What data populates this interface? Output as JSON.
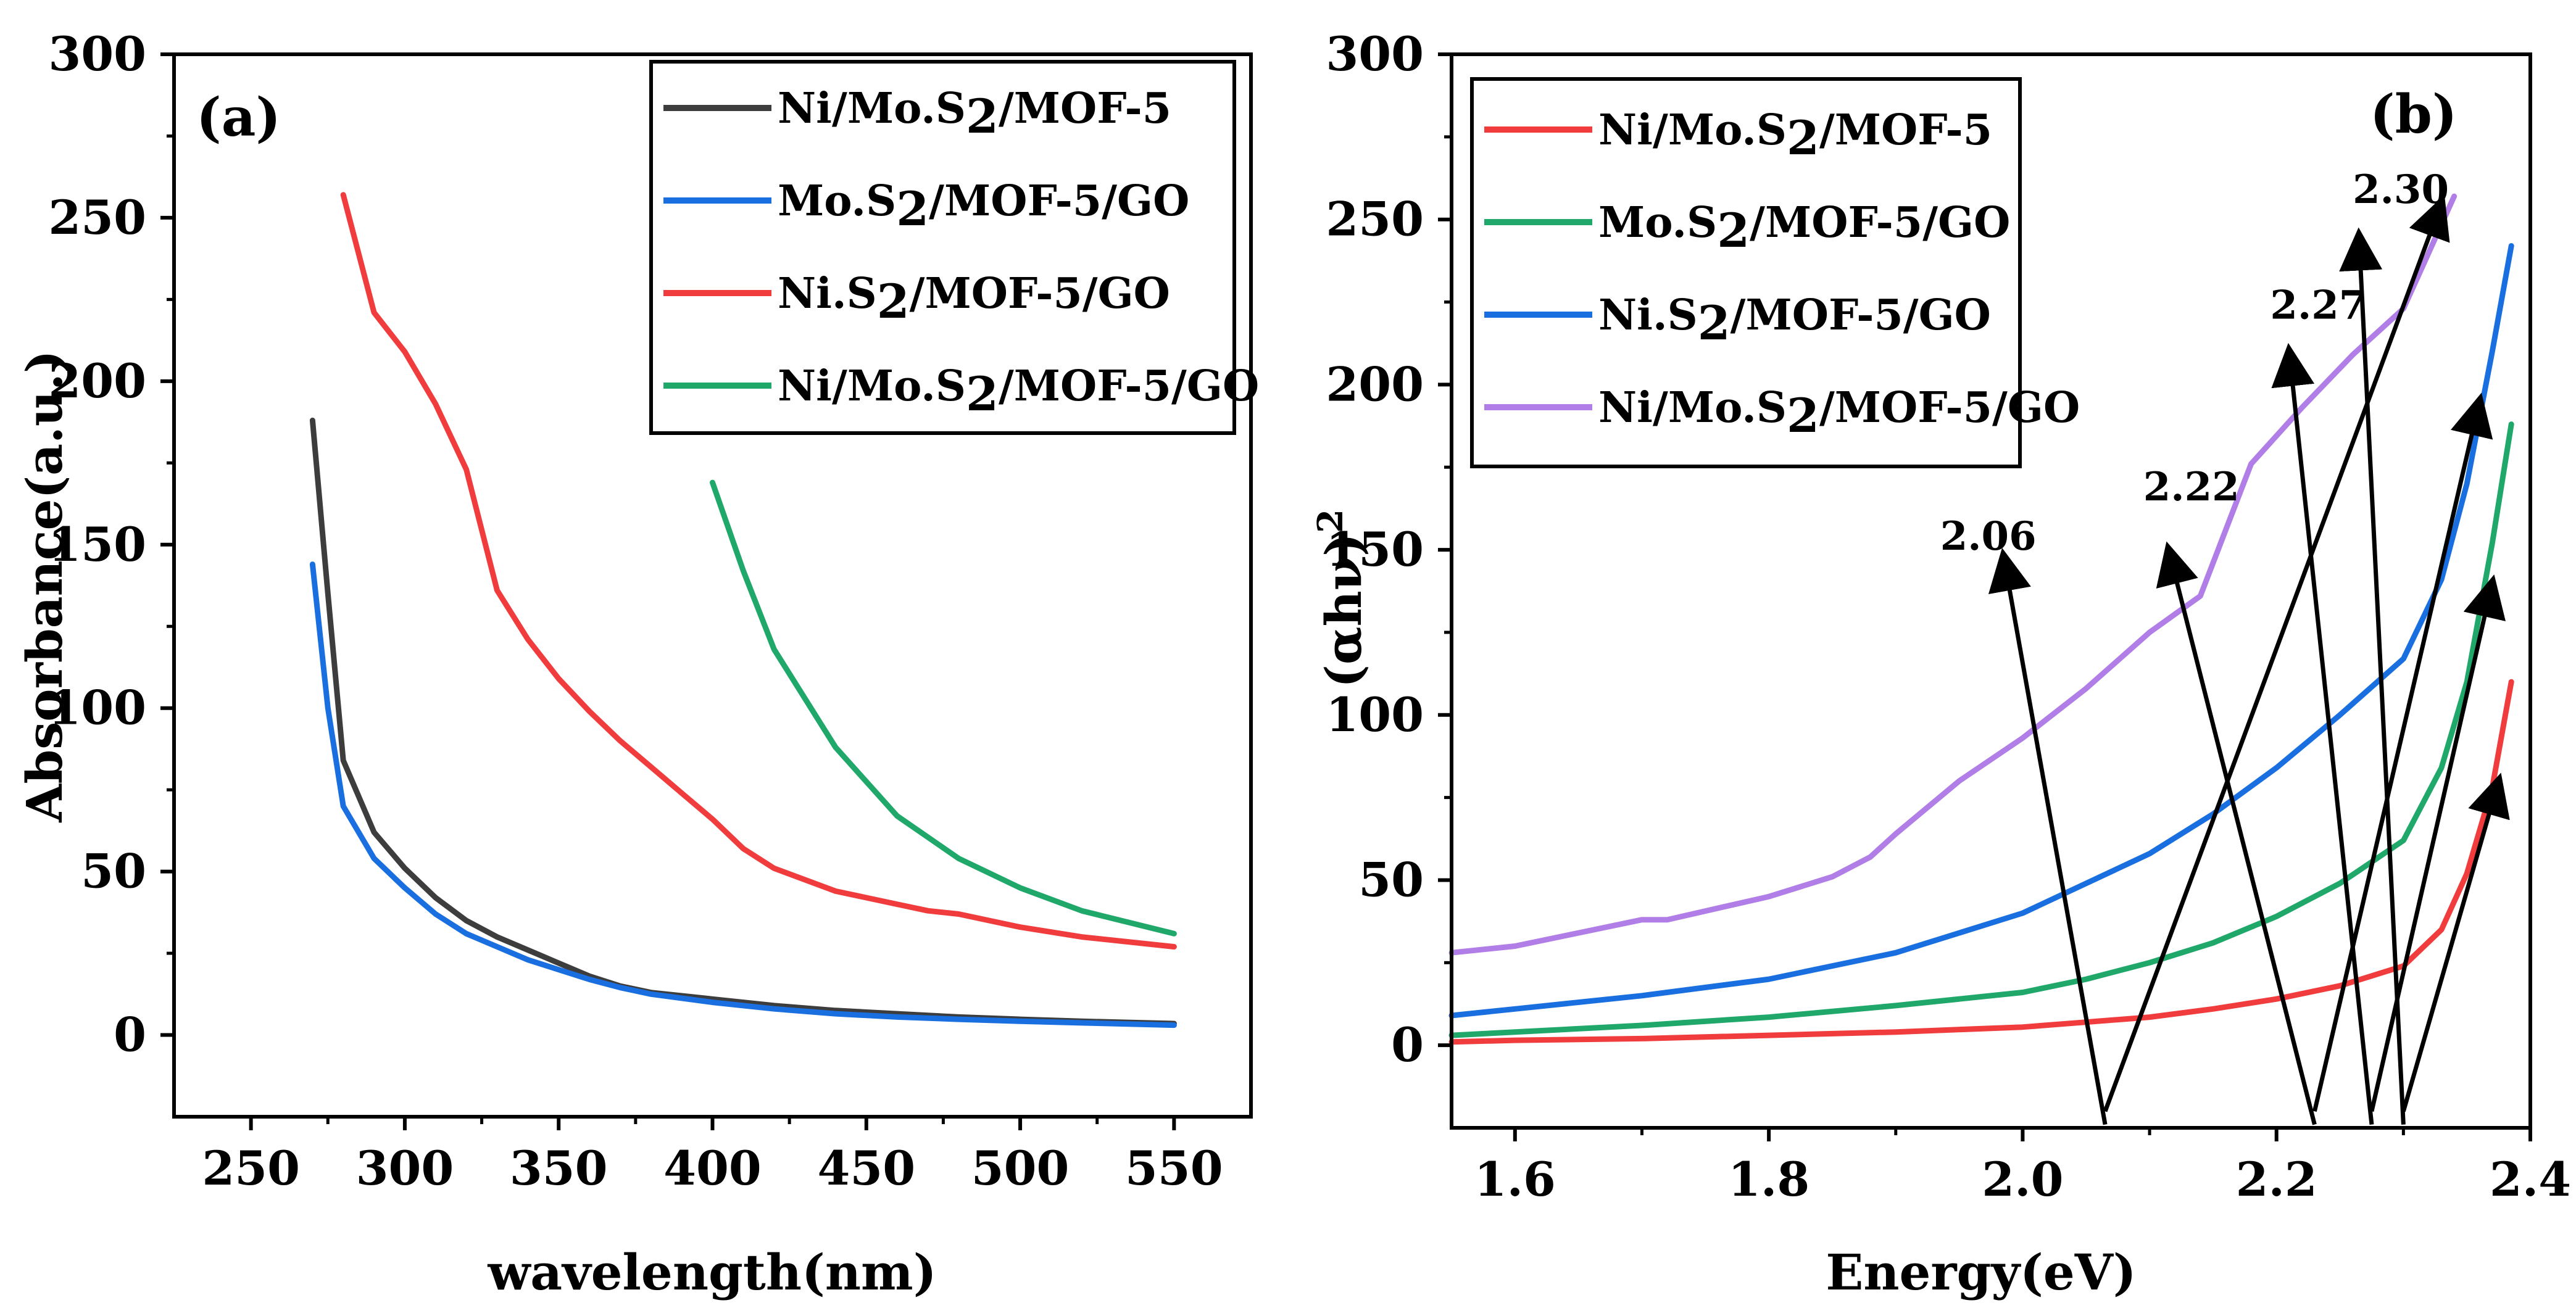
{
  "chart_data": [
    {
      "id": "a",
      "type": "line",
      "panel_label": "(a)",
      "xlabel": "wavelength(nm)",
      "ylabel": "Absorbance(a.u.)",
      "xlim": [
        225,
        575
      ],
      "ylim": [
        -25,
        300
      ],
      "xticks": [
        250,
        300,
        350,
        400,
        450,
        500,
        550
      ],
      "yticks": [
        0,
        50,
        100,
        150,
        200,
        250,
        300
      ],
      "legend": {
        "position": "top-right"
      },
      "series": [
        {
          "name": "Ni/Mo.S2/MOF-5",
          "formula": [
            "Ni/Mo.S",
            "2",
            "/MOF-5"
          ],
          "color": "#3d3d3d",
          "x": [
            270,
            275,
            280,
            290,
            300,
            310,
            320,
            330,
            340,
            350,
            360,
            370,
            380,
            390,
            400,
            420,
            440,
            460,
            480,
            500,
            520,
            550
          ],
          "y": [
            188,
            135,
            84,
            62,
            51,
            42,
            35,
            30,
            26,
            22,
            18,
            15,
            13,
            12,
            11,
            9,
            7.5,
            6.5,
            5.5,
            4.8,
            4.2,
            3.5
          ]
        },
        {
          "name": "Mo.S2/MOF-5/GO",
          "formula": [
            "Mo.S",
            "2",
            "/MOF-5/GO"
          ],
          "color": "#1a6fe0",
          "x": [
            270,
            275,
            280,
            290,
            300,
            310,
            320,
            330,
            340,
            350,
            360,
            370,
            380,
            400,
            420,
            440,
            460,
            480,
            500,
            520,
            550
          ],
          "y": [
            144,
            100,
            70,
            54,
            45,
            37,
            31,
            27,
            23,
            20,
            17,
            14.5,
            12.5,
            10,
            8,
            6.5,
            5.5,
            4.8,
            4.2,
            3.7,
            3
          ]
        },
        {
          "name": "Ni.S2/MOF-5/GO",
          "formula": [
            "Ni.S",
            "2",
            "/MOF-5/GO"
          ],
          "color": "#f03c3c",
          "x": [
            280,
            290,
            300,
            310,
            320,
            330,
            340,
            350,
            360,
            370,
            380,
            390,
            400,
            410,
            420,
            440,
            460,
            470,
            480,
            490,
            500,
            520,
            550
          ],
          "y": [
            257,
            221,
            209,
            193,
            173,
            136,
            121,
            109,
            99,
            90,
            82,
            74,
            66,
            57,
            51,
            44,
            40,
            38,
            37,
            35,
            33,
            30,
            27
          ]
        },
        {
          "name": "Ni/Mo.S2/MOF-5/GO",
          "formula": [
            "Ni/Mo.S",
            "2",
            "/MOF-5/GO"
          ],
          "color": "#1fa86a",
          "x": [
            400,
            410,
            420,
            440,
            460,
            480,
            500,
            520,
            550
          ],
          "y": [
            169,
            142,
            118,
            88,
            67,
            54,
            45,
            38,
            31
          ]
        }
      ]
    },
    {
      "id": "b",
      "type": "line",
      "panel_label": "(b)",
      "xlabel": "Energy(eV)",
      "ylabel": "(αhν)",
      "ylabel_superscript": "2",
      "xlim": [
        1.55,
        2.4
      ],
      "ylim": [
        -25,
        300
      ],
      "xticks": [
        "1.6",
        "1.8",
        "2.0",
        "2.2",
        "2.4"
      ],
      "yticks": [
        0,
        50,
        100,
        150,
        200,
        250,
        300
      ],
      "legend": {
        "position": "top-left"
      },
      "series": [
        {
          "name": "Ni/Mo.S2/MOF-5",
          "formula": [
            "Ni/Mo.S",
            "2",
            "/MOF-5"
          ],
          "color": "#f03c3c",
          "x": [
            1.55,
            1.6,
            1.7,
            1.8,
            1.9,
            2.0,
            2.05,
            2.1,
            2.15,
            2.2,
            2.25,
            2.3,
            2.33,
            2.35,
            2.37,
            2.385
          ],
          "y": [
            1,
            1.5,
            2,
            3,
            4,
            5.5,
            7,
            8.5,
            11,
            14,
            18,
            24,
            35,
            52,
            78,
            110
          ]
        },
        {
          "name": "Mo.S2/MOF-5/GO",
          "formula": [
            "Mo.S",
            "2",
            "/MOF-5/GO"
          ],
          "color": "#1fa86a",
          "x": [
            1.55,
            1.6,
            1.7,
            1.8,
            1.9,
            2.0,
            2.05,
            2.1,
            2.15,
            2.2,
            2.25,
            2.3,
            2.33,
            2.35,
            2.37,
            2.385
          ],
          "y": [
            3,
            4,
            6,
            8.5,
            12,
            16,
            20,
            25,
            31,
            39,
            49,
            62,
            84,
            110,
            152,
            188
          ]
        },
        {
          "name": "Ni.S2/MOF-5/GO",
          "formula": [
            "Ni.S",
            "2",
            "/MOF-5/GO"
          ],
          "color": "#1a6fe0",
          "x": [
            1.55,
            1.6,
            1.7,
            1.8,
            1.9,
            2.0,
            2.05,
            2.1,
            2.15,
            2.2,
            2.25,
            2.3,
            2.33,
            2.35,
            2.37,
            2.385
          ],
          "y": [
            9,
            11,
            15,
            20,
            28,
            40,
            49,
            58,
            70,
            84,
            100,
            117,
            141,
            170,
            210,
            242
          ]
        },
        {
          "name": "Ni/Mo.S2/MOF-5/GO",
          "formula": [
            "Ni/Mo.S",
            "2",
            "/MOF-5/GO"
          ],
          "color": "#b07ee6",
          "x": [
            1.55,
            1.6,
            1.65,
            1.7,
            1.72,
            1.8,
            1.85,
            1.88,
            1.9,
            1.95,
            2.0,
            2.05,
            2.1,
            2.14,
            2.18,
            2.22,
            2.26,
            2.3,
            2.32,
            2.34
          ],
          "y": [
            28,
            30,
            34,
            38,
            38,
            45,
            51,
            57,
            64,
            80,
            93,
            108,
            125,
            136,
            176,
            193,
            209,
            223,
            240,
            257
          ]
        }
      ],
      "annotations": [
        {
          "label": "2.06",
          "arrow_tail": [
            2.065,
            -24
          ],
          "arrow_head": [
            1.985,
            148
          ],
          "label_at": [
            1.935,
            150
          ]
        },
        {
          "label": "2.22",
          "arrow_tail": [
            2.23,
            -24
          ],
          "arrow_head": [
            2.115,
            150
          ],
          "label_at": [
            2.095,
            165
          ]
        },
        {
          "label": "2.27",
          "arrow_tail": [
            2.275,
            -24
          ],
          "arrow_head": [
            2.21,
            210
          ],
          "label_at": [
            2.195,
            220
          ]
        },
        {
          "label": "2.30",
          "arrow_tail": [
            2.3,
            -24
          ],
          "arrow_head": [
            2.265,
            245
          ],
          "label_at": [
            2.26,
            255
          ]
        },
        {
          "label": "",
          "arrow_tail": [
            2.065,
            -20
          ],
          "arrow_head": [
            2.33,
            255
          ]
        },
        {
          "label": "",
          "arrow_tail": [
            2.23,
            -20
          ],
          "arrow_head": [
            2.36,
            195
          ]
        },
        {
          "label": "",
          "arrow_tail": [
            2.275,
            -20
          ],
          "arrow_head": [
            2.37,
            140
          ]
        },
        {
          "label": "",
          "arrow_tail": [
            2.3,
            -20
          ],
          "arrow_head": [
            2.375,
            80
          ]
        }
      ]
    }
  ]
}
